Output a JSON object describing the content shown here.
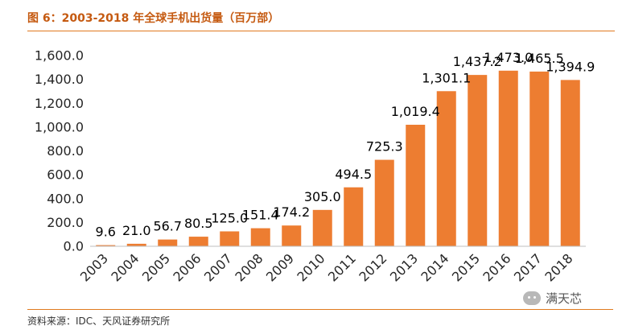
{
  "header": {
    "title": "图 6：2003-2018 年全球手机出货量（百万部）"
  },
  "footer": {
    "source": "资料来源：IDC、天风证券研究所"
  },
  "watermark": {
    "text": "满天芯",
    "icon": "wechat-icon"
  },
  "colors": {
    "bar": "#ed7d31",
    "accent": "#e07a1f",
    "title": "#c55a11"
  },
  "chart_data": {
    "type": "bar",
    "title": "",
    "xlabel": "",
    "ylabel": "",
    "ylim": [
      0,
      1600
    ],
    "yticks": [
      0,
      200,
      400,
      600,
      800,
      1000,
      1200,
      1400,
      1600
    ],
    "ytick_labels": [
      "0.0",
      "200.0",
      "400.0",
      "600.0",
      "800.0",
      "1,000.0",
      "1,200.0",
      "1,400.0",
      "1,600.0"
    ],
    "categories": [
      "2003",
      "2004",
      "2005",
      "2006",
      "2007",
      "2008",
      "2009",
      "2010",
      "2011",
      "2012",
      "2013",
      "2014",
      "2015",
      "2016",
      "2017",
      "2018"
    ],
    "values": [
      9.6,
      21.0,
      56.7,
      80.5,
      125.0,
      151.4,
      174.2,
      305.0,
      494.5,
      725.3,
      1019.4,
      1301.1,
      1437.2,
      1473.0,
      1465.5,
      1394.9
    ],
    "data_labels": [
      "9.6",
      "21.0",
      "56.7",
      "80.5",
      "125.0",
      "151.4",
      "174.2",
      "305.0",
      "494.5",
      "725.3",
      "1,019.4",
      "1,301.1",
      "1,437.2",
      "1,473.0",
      "1,465.5",
      "1,394.9"
    ],
    "grid": false,
    "legend": "none"
  }
}
